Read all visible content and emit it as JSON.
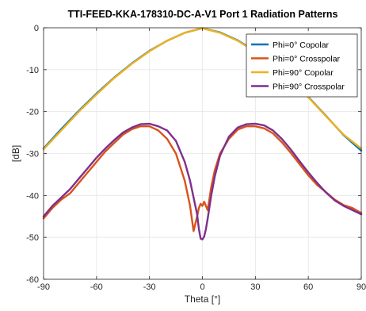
{
  "chart_data": {
    "type": "line",
    "title": "TTI-FEED-KKA-178310-DC-A-V1 Port 1 Radiation Patterns",
    "xlabel": "Theta [°]",
    "ylabel": "[dB]",
    "xlim": [
      -90,
      90
    ],
    "ylim": [
      -60,
      0
    ],
    "xticks": [
      -90,
      -60,
      -30,
      0,
      30,
      60,
      90
    ],
    "yticks": [
      0,
      -10,
      -20,
      -30,
      -40,
      -50,
      -60
    ],
    "xtick_labels": [
      "-90",
      "-60",
      "-30",
      "0",
      "30",
      "60",
      "90"
    ],
    "ytick_labels": [
      "0",
      "-10",
      "-20",
      "-30",
      "-40",
      "-50",
      "-60"
    ],
    "grid": true,
    "legend_position": "top-right",
    "series": [
      {
        "name": "Phi=0° Copolar",
        "color": "#0072BD",
        "x": [
          -90,
          -80,
          -70,
          -60,
          -50,
          -40,
          -30,
          -20,
          -10,
          0,
          10,
          20,
          30,
          40,
          50,
          60,
          70,
          80,
          90
        ],
        "y": [
          -28.8,
          -24.2,
          -19.8,
          -15.7,
          -11.9,
          -8.5,
          -5.5,
          -3.1,
          -1.2,
          -0.1,
          -1.1,
          -3.0,
          -5.6,
          -8.7,
          -12.3,
          -16.5,
          -21.0,
          -25.6,
          -29.3
        ]
      },
      {
        "name": "Phi=0° Crosspolar",
        "color": "#D95319",
        "x": [
          -90,
          -85,
          -80,
          -75,
          -70,
          -65,
          -60,
          -55,
          -50,
          -45,
          -40,
          -35,
          -30,
          -25,
          -20,
          -15,
          -10,
          -7,
          -5,
          -3,
          -2,
          -1,
          0,
          1,
          2,
          3,
          5,
          7,
          10,
          15,
          20,
          25,
          30,
          35,
          40,
          45,
          50,
          55,
          60,
          65,
          70,
          75,
          80,
          85,
          90
        ],
        "y": [
          -45.5,
          -43.0,
          -41.0,
          -39.5,
          -37.0,
          -34.5,
          -32.0,
          -29.5,
          -27.5,
          -25.5,
          -24.2,
          -23.5,
          -23.5,
          -24.5,
          -26.5,
          -30.0,
          -36.5,
          -42.5,
          -48.5,
          -45.0,
          -43.0,
          -42.0,
          -42.5,
          -41.5,
          -42.5,
          -43.5,
          -38.0,
          -34.0,
          -30.0,
          -26.5,
          -24.3,
          -23.5,
          -23.5,
          -24.0,
          -25.2,
          -27.3,
          -29.8,
          -32.5,
          -35.2,
          -37.5,
          -39.2,
          -41.0,
          -42.3,
          -43.0,
          -44.2
        ]
      },
      {
        "name": "Phi=90° Copolar",
        "color": "#EDB120",
        "x": [
          -90,
          -80,
          -70,
          -60,
          -50,
          -40,
          -30,
          -20,
          -10,
          0,
          10,
          20,
          30,
          40,
          50,
          60,
          70,
          80,
          90
        ],
        "y": [
          -29.0,
          -24.5,
          -20.0,
          -15.9,
          -12.0,
          -8.6,
          -5.6,
          -3.1,
          -1.2,
          -0.1,
          -1.2,
          -3.1,
          -5.7,
          -8.8,
          -12.4,
          -16.6,
          -21.1,
          -25.5,
          -28.8
        ]
      },
      {
        "name": "Phi=90° Crosspolar",
        "color": "#7E2F8E",
        "x": [
          -90,
          -85,
          -80,
          -75,
          -70,
          -65,
          -60,
          -55,
          -50,
          -45,
          -40,
          -35,
          -30,
          -25,
          -20,
          -15,
          -10,
          -7,
          -5,
          -3,
          -2,
          -1,
          0,
          1,
          2,
          3,
          5,
          7,
          10,
          15,
          20,
          25,
          30,
          35,
          40,
          45,
          50,
          55,
          60,
          65,
          70,
          75,
          80,
          85,
          90
        ],
        "y": [
          -45.0,
          -42.5,
          -40.5,
          -38.5,
          -36.0,
          -33.5,
          -31.0,
          -28.8,
          -26.8,
          -25.0,
          -23.8,
          -23.0,
          -22.9,
          -23.5,
          -24.5,
          -27.0,
          -32.0,
          -36.5,
          -40.5,
          -44.5,
          -48.0,
          -50.3,
          -50.5,
          -49.8,
          -48.0,
          -45.5,
          -40.0,
          -35.5,
          -30.5,
          -26.0,
          -23.8,
          -23.0,
          -22.9,
          -23.3,
          -24.5,
          -26.5,
          -29.0,
          -31.8,
          -34.5,
          -37.0,
          -39.3,
          -41.2,
          -42.5,
          -43.5,
          -44.5
        ]
      }
    ]
  }
}
